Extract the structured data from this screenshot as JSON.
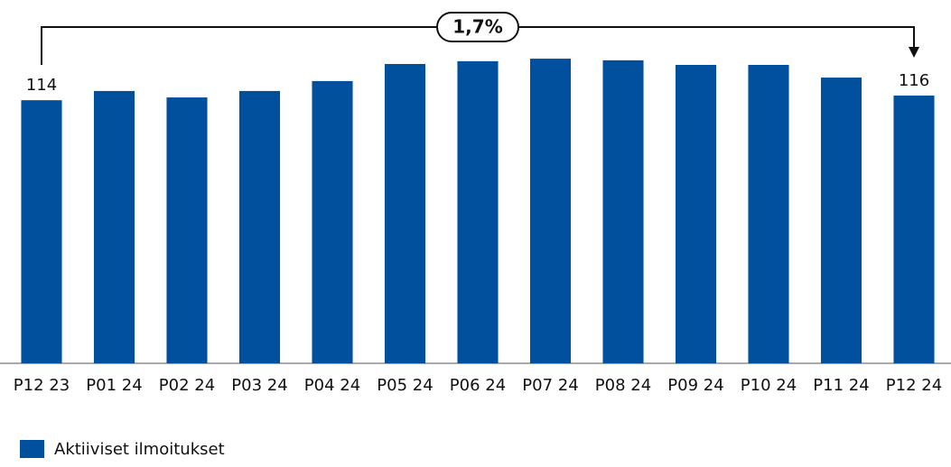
{
  "chart_data": {
    "type": "bar",
    "categories": [
      "P12 23",
      "P01 24",
      "P02 24",
      "P03 24",
      "P04 24",
      "P05 24",
      "P06 24",
      "P07 24",
      "P08 24",
      "P09 24",
      "P10 24",
      "P11 24",
      "P12 24"
    ],
    "series": [
      {
        "name": "Aktiiviset ilmoitukset",
        "color": "#00509e",
        "values": [
          114,
          118,
          115.2,
          118,
          122.3,
          129.7,
          130.9,
          132,
          131.3,
          129.3,
          129.3,
          123.8,
          116
        ],
        "value_labels": [
          "114",
          null,
          null,
          null,
          null,
          null,
          null,
          null,
          null,
          null,
          null,
          null,
          "116"
        ]
      }
    ],
    "annotation": "1,7%",
    "ylim": [
      0,
      150
    ],
    "legend": "bottom-left"
  }
}
